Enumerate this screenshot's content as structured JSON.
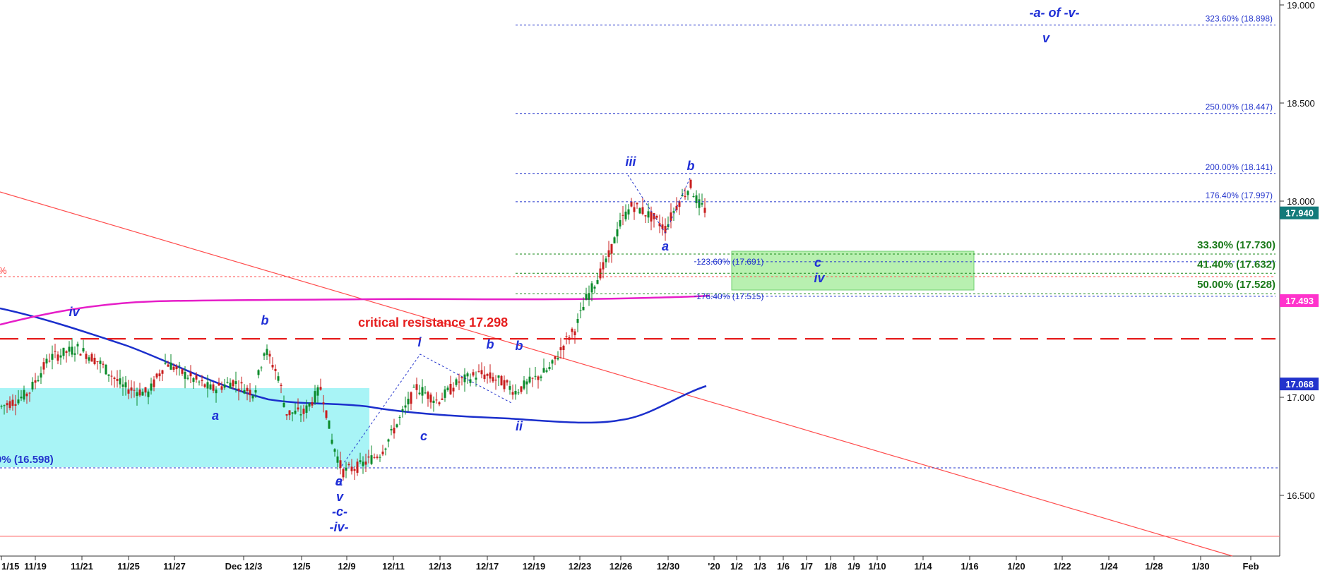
{
  "chart_data": {
    "type": "candlestick",
    "title": "",
    "ylim": [
      16.23,
      19.03
    ],
    "y_ticks": [
      "19.000",
      "18.500",
      "18.000",
      "17.000",
      "16.500"
    ],
    "x_tick_labels": [
      "1/15",
      "11/19",
      "11/21",
      "11/25",
      "11/27",
      "Dec 12/3",
      "12/5",
      "12/9",
      "12/11",
      "12/13",
      "12/17",
      "12/19",
      "12/23",
      "12/26",
      "12/30",
      "'20",
      "1/2",
      "1/3",
      "1/6",
      "1/7",
      "1/8",
      "1/9",
      "1/10",
      "1/14",
      "1/16",
      "1/20",
      "1/22",
      "1/24",
      "1/28",
      "1/30",
      "Feb"
    ],
    "price_badges": [
      {
        "label": "17.940",
        "value": 17.94,
        "color": "#137a7a"
      },
      {
        "label": "17.493",
        "value": 17.493,
        "color": "#ff33cc"
      },
      {
        "label": "17.068",
        "value": 17.068,
        "color": "#2233cc"
      }
    ],
    "fib_blue": [
      {
        "label": "323.60% (18.898)",
        "value": 18.898
      },
      {
        "label": "250.00% (18.447)",
        "value": 18.447
      },
      {
        "label": "200.00% (18.141)",
        "value": 18.141
      },
      {
        "label": "176.40% (17.997)",
        "value": 17.997
      }
    ],
    "fib_inner": [
      {
        "label": "123.60% (17.691)",
        "value": 17.691
      },
      {
        "label": "176.40% (17.515)",
        "value": 17.515
      }
    ],
    "fib_green": [
      {
        "label": "33.30% (17.730)",
        "value": 17.73
      },
      {
        "label": "41.40% (17.632)",
        "value": 17.632
      },
      {
        "label": "50.00% (17.528)",
        "value": 17.528
      }
    ],
    "support_label": "0% (16.598)",
    "support_value": 16.598,
    "partial_pct_label": "%",
    "critical_resistance": {
      "label": "critical resistance 17.298",
      "value": 17.298
    },
    "wave_labels": [
      "-a- of -v-",
      "v",
      "iii",
      "b",
      "a",
      "c",
      "iv",
      "b",
      "iv",
      "a",
      "b",
      "i",
      "b",
      "c",
      "ii",
      "a",
      "c",
      "v",
      "-c-",
      "-iv-"
    ],
    "ohlc": []
  }
}
